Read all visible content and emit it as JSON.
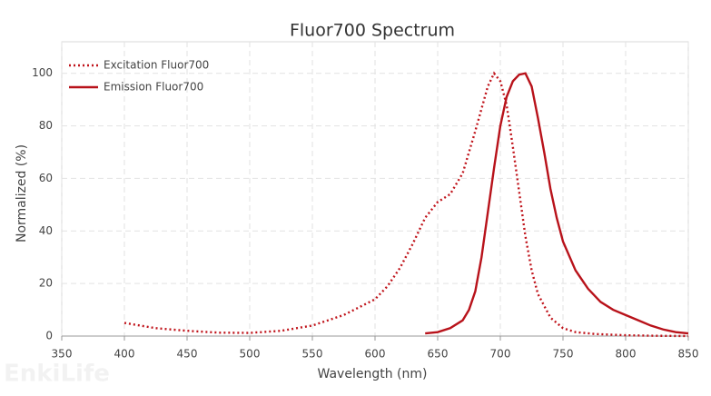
{
  "chart_data": {
    "type": "line",
    "title": "Fluor700  Spectrum",
    "x_label": "Wavelength (nm)",
    "y_label": "Normalized (%)",
    "watermark": "EnkiLife",
    "series": [
      {
        "name": "Excitation Fluor700",
        "color": "#c0141b",
        "dash": "dotted",
        "x": [
          400,
          425,
          450,
          475,
          500,
          525,
          550,
          575,
          600,
          610,
          620,
          630,
          640,
          650,
          660,
          670,
          680,
          690,
          695,
          700,
          705,
          710,
          715,
          720,
          725,
          730,
          740,
          750,
          760,
          775,
          800,
          825,
          850
        ],
        "values": [
          5,
          3,
          2,
          1.3,
          1.2,
          2,
          4,
          8,
          14,
          19,
          26,
          35,
          45,
          51,
          54,
          62,
          78,
          95,
          100,
          97,
          88,
          72,
          55,
          38,
          25,
          16,
          7,
          3,
          1.5,
          0.8,
          0.3,
          0.1,
          0
        ]
      },
      {
        "name": "Emission Fluor700",
        "color": "#b8121a",
        "dash": "solid",
        "x": [
          640,
          650,
          660,
          670,
          675,
          680,
          685,
          690,
          695,
          700,
          705,
          710,
          715,
          720,
          725,
          730,
          735,
          740,
          745,
          750,
          760,
          770,
          780,
          790,
          800,
          810,
          820,
          830,
          840,
          850
        ],
        "values": [
          1,
          1.5,
          3,
          6,
          10,
          17,
          30,
          47,
          64,
          80,
          91,
          97,
          99.5,
          100,
          95,
          83,
          70,
          56,
          45,
          36,
          25,
          18,
          13,
          10,
          8,
          6,
          4,
          2.5,
          1.5,
          1
        ]
      }
    ],
    "xlim": [
      350,
      850
    ],
    "xticks": [
      350,
      400,
      450,
      500,
      550,
      600,
      650,
      700,
      750,
      800,
      850
    ],
    "ylim": [
      0,
      112
    ],
    "yticks": [
      0,
      20,
      40,
      60,
      80,
      100
    ],
    "grid": true,
    "legend": "upper left"
  }
}
